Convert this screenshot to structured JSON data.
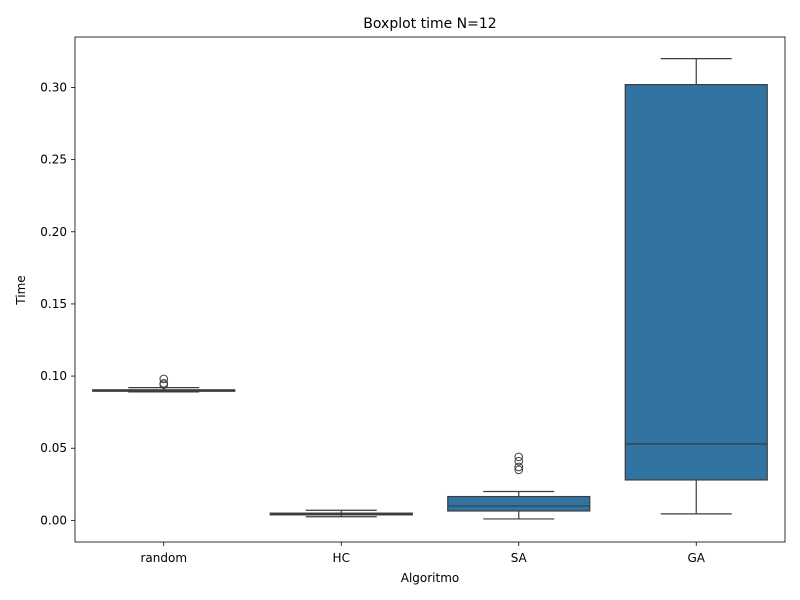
{
  "chart_data": {
    "type": "box",
    "title": "Boxplot time N=12",
    "xlabel": "Algoritmo",
    "ylabel": "Time",
    "categories": [
      "random",
      "HC",
      "SA",
      "GA"
    ],
    "ylim": [
      -0.015,
      0.335
    ],
    "yticks": [
      0.0,
      0.05,
      0.1,
      0.15,
      0.2,
      0.25,
      0.3
    ],
    "ytick_labels": [
      "0.00",
      "0.05",
      "0.10",
      "0.15",
      "0.20",
      "0.25",
      "0.30"
    ],
    "grid": false,
    "box_color": "#3274a1",
    "line_color": "#3d3d3d",
    "boxes": [
      {
        "category": "random",
        "whisker_low": 0.089,
        "q1": 0.0895,
        "median": 0.09,
        "q3": 0.0905,
        "whisker_high": 0.092,
        "outliers": [
          0.094,
          0.095,
          0.098
        ]
      },
      {
        "category": "HC",
        "whisker_low": 0.0025,
        "q1": 0.0038,
        "median": 0.0043,
        "q3": 0.005,
        "whisker_high": 0.007,
        "outliers": []
      },
      {
        "category": "SA",
        "whisker_low": 0.001,
        "q1": 0.0065,
        "median": 0.01,
        "q3": 0.0165,
        "whisker_high": 0.02,
        "outliers": [
          0.035,
          0.037,
          0.041,
          0.044
        ]
      },
      {
        "category": "GA",
        "whisker_low": 0.0045,
        "q1": 0.028,
        "median": 0.053,
        "q3": 0.302,
        "whisker_high": 0.32,
        "outliers": []
      }
    ]
  }
}
